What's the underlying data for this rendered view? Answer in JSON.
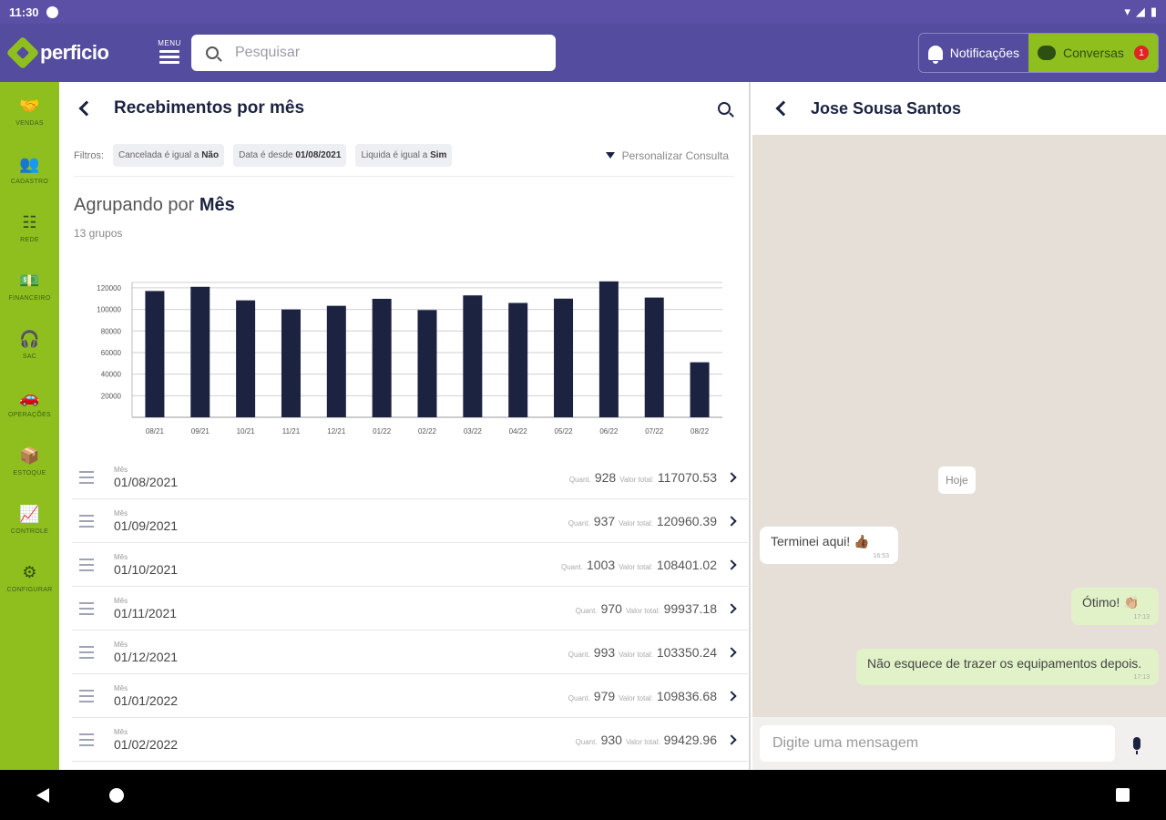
{
  "status": {
    "time": "11:30"
  },
  "app": {
    "logo": "perficio",
    "menu_label": "MENU",
    "search_placeholder": "Pesquisar",
    "notifications_label": "Notificações",
    "conversations_label": "Conversas",
    "conversations_badge": "1"
  },
  "sidebar": {
    "items": [
      {
        "label": "VENDAS",
        "icon": "handshake-icon"
      },
      {
        "label": "CADASTRO",
        "icon": "users-icon"
      },
      {
        "label": "REDE",
        "icon": "network-icon"
      },
      {
        "label": "FINANCEIRO",
        "icon": "money-icon"
      },
      {
        "label": "SAC",
        "icon": "headset-icon"
      },
      {
        "label": "OPERAÇÕES",
        "icon": "car-icon"
      },
      {
        "label": "ESTOQUE",
        "icon": "box-icon"
      },
      {
        "label": "CONTROLE",
        "icon": "chart-icon"
      },
      {
        "label": "CONFIGURAR",
        "icon": "gear-icon"
      }
    ]
  },
  "left": {
    "title": "Recebimentos por mês",
    "filters_label": "Filtros:",
    "filters": [
      {
        "field": "Cancelada",
        "op": "é igual a",
        "value": "Não"
      },
      {
        "field": "Data",
        "op": "é desde",
        "value": "01/08/2021"
      },
      {
        "field": "Liquida",
        "op": "é igual a",
        "value": "Sim"
      }
    ],
    "customize_label": "Personalizar Consulta",
    "grouping_prefix": "Agrupando por",
    "grouping_field": "Mês",
    "group_count": "13 grupos",
    "row_label": "Mês",
    "qty_label": "Quant.",
    "total_label": "Valor total:",
    "rows": [
      {
        "date": "01/08/2021",
        "qty": "928",
        "total": "117070.53"
      },
      {
        "date": "01/09/2021",
        "qty": "937",
        "total": "120960.39"
      },
      {
        "date": "01/10/2021",
        "qty": "1003",
        "total": "108401.02"
      },
      {
        "date": "01/11/2021",
        "qty": "970",
        "total": "99937.18"
      },
      {
        "date": "01/12/2021",
        "qty": "993",
        "total": "103350.24"
      },
      {
        "date": "01/01/2022",
        "qty": "979",
        "total": "109836.68"
      },
      {
        "date": "01/02/2022",
        "qty": "930",
        "total": "99429.96"
      }
    ]
  },
  "chart_data": {
    "type": "bar",
    "categories": [
      "08/21",
      "09/21",
      "10/21",
      "11/21",
      "12/21",
      "01/22",
      "02/22",
      "03/22",
      "04/22",
      "05/22",
      "06/22",
      "07/22",
      "08/22"
    ],
    "values": [
      117070.53,
      120960.39,
      108401.02,
      99937.18,
      103350.24,
      109836.68,
      99429.96,
      113000,
      106000,
      110000,
      126000,
      111000,
      51000
    ],
    "yticks": [
      20000,
      40000,
      60000,
      80000,
      100000,
      120000
    ],
    "ylim": [
      0,
      125000
    ],
    "bar_color": "#1c2340",
    "grid": true
  },
  "chat": {
    "contact": "Jose Sousa Santos",
    "day_label": "Hoje",
    "messages": [
      {
        "dir": "in",
        "text": "Terminei aqui! 👍🏾",
        "time": "16:53"
      },
      {
        "dir": "out",
        "text": "Ótimo! 👏🏼",
        "time": "17:13"
      },
      {
        "dir": "out",
        "text": "Não esquece de trazer os equipamentos depois.",
        "time": "17:13"
      }
    ],
    "input_placeholder": "Digite uma mensagem"
  },
  "colors": {
    "purple": "#534c9f",
    "green": "#8fbf1f",
    "navy": "#1c2340"
  }
}
